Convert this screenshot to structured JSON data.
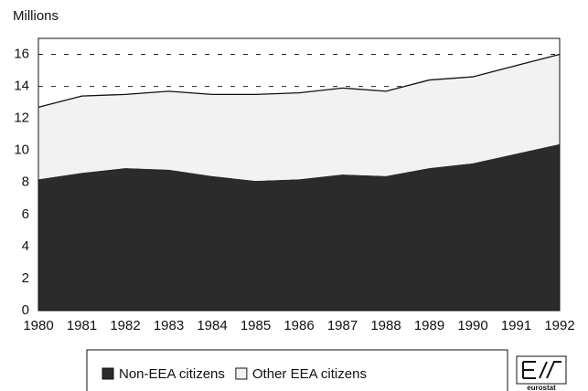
{
  "chart_data": {
    "type": "stacked_area",
    "y_label": "Millions",
    "categories": [
      "1980",
      "1981",
      "1982",
      "1983",
      "1984",
      "1985",
      "1986",
      "1987",
      "1988",
      "1989",
      "1990",
      "1991",
      "1992"
    ],
    "series": [
      {
        "name": "Non-EEA citizens",
        "color": "#2b2b2b",
        "values": [
          8.2,
          8.6,
          8.9,
          8.8,
          8.4,
          8.1,
          8.2,
          8.5,
          8.4,
          8.9,
          9.2,
          9.8,
          10.4
        ]
      },
      {
        "name": "Other EEA citizens",
        "color": "#f2f2f2",
        "values": [
          4.5,
          4.8,
          4.6,
          4.9,
          5.1,
          5.4,
          5.4,
          5.4,
          5.3,
          5.5,
          5.4,
          5.5,
          5.6
        ]
      }
    ],
    "ylim": [
      0,
      17
    ],
    "yticks": [
      0,
      2,
      4,
      6,
      8,
      10,
      12,
      14,
      16
    ],
    "grid": true,
    "logo": "eurostat"
  }
}
